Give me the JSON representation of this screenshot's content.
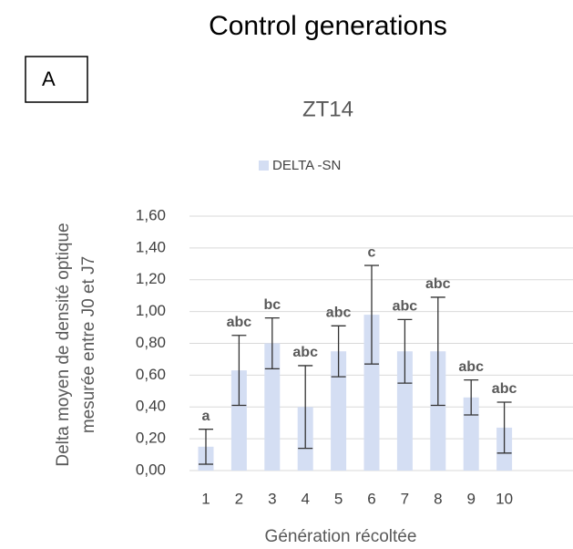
{
  "header": {
    "title": "Control generations",
    "panel_label": "A"
  },
  "chart_data": {
    "type": "bar",
    "title": "ZT14",
    "x_label": "Génération récoltée",
    "y_label": [
      "Delta moyen de densité optique",
      "mesurée entre J0 et J7"
    ],
    "categories": [
      "1",
      "2",
      "3",
      "4",
      "5",
      "6",
      "7",
      "8",
      "9",
      "10"
    ],
    "series": [
      {
        "name": "DELTA -SN",
        "color": "#d4def3",
        "values": [
          0.15,
          0.63,
          0.8,
          0.4,
          0.75,
          0.98,
          0.75,
          0.75,
          0.46,
          0.27
        ],
        "errors": [
          0.11,
          0.22,
          0.16,
          0.26,
          0.16,
          0.31,
          0.2,
          0.34,
          0.11,
          0.16
        ],
        "letters": [
          "a",
          "abc",
          "bc",
          "abc",
          "abc",
          "c",
          "abc",
          "abc",
          "abc",
          "abc"
        ]
      }
    ],
    "ylim": [
      0,
      1.6
    ],
    "yticks": [
      {
        "value": 0,
        "label": "0,00"
      },
      {
        "value": 0.2,
        "label": "0,20"
      },
      {
        "value": 0.4,
        "label": "0,40"
      },
      {
        "value": 0.6,
        "label": "0,60"
      },
      {
        "value": 0.8,
        "label": "0,80"
      },
      {
        "value": 1,
        "label": "1,00"
      },
      {
        "value": 1.2,
        "label": "1,20"
      },
      {
        "value": 1.4,
        "label": "1,40"
      },
      {
        "value": 1.6,
        "label": "1,60"
      }
    ],
    "grid": true
  }
}
